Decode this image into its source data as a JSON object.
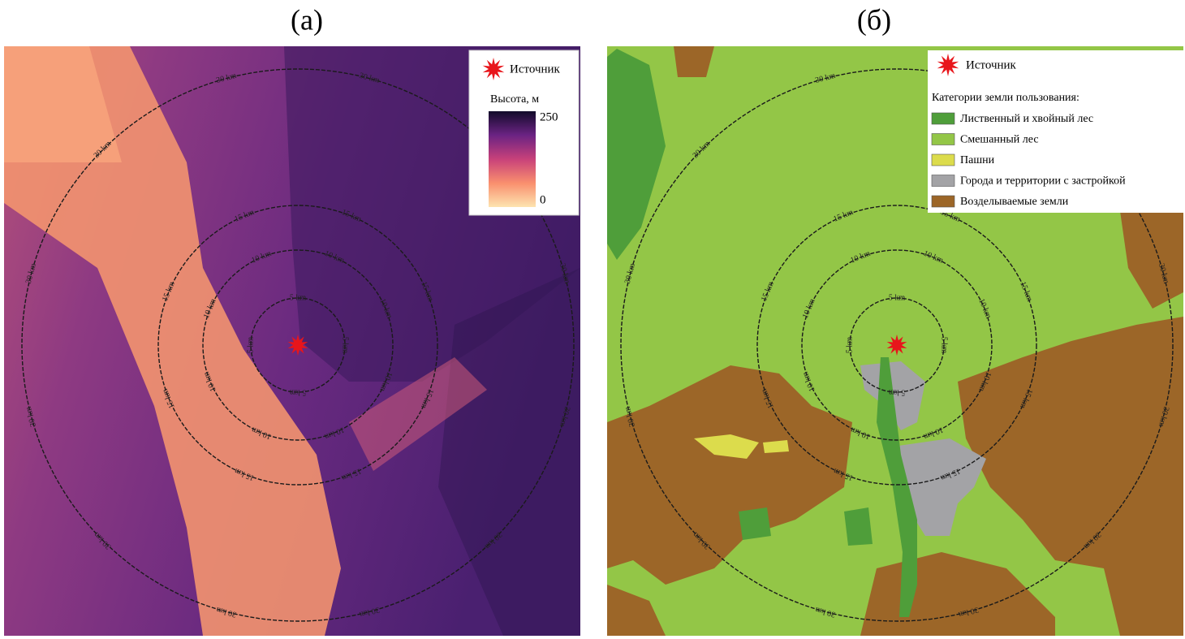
{
  "panels": [
    {
      "label": "(а)",
      "legend": {
        "source": "Источник",
        "colorbar": {
          "title": "Высота, м",
          "max": "250",
          "min": "0"
        }
      }
    },
    {
      "label": "(б)",
      "legend": {
        "source": "Источник",
        "categories_title": "Категории земли пользования:",
        "categories": [
          {
            "name": "Лиственный и хвойный лес",
            "color": "#4f9e3a"
          },
          {
            "name": "Смешанный лес",
            "color": "#93c647"
          },
          {
            "name": "Пашни",
            "color": "#dcdc4c"
          },
          {
            "name": "Города и территории с застройкой",
            "color": "#a3a3a6"
          },
          {
            "name": "Возделываемые земли",
            "color": "#9c6628"
          }
        ]
      }
    }
  ],
  "rings": [
    "5 km",
    "10 km",
    "15 km",
    "30 km"
  ]
}
